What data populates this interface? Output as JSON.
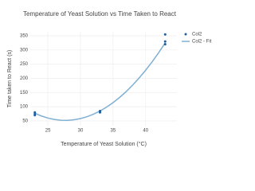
{
  "chart_data": {
    "type": "scatter",
    "title": "Temperature of Yeast Solution vs Time Taken to React",
    "x_label": "Temperature of Yeast Solution (°C)",
    "y_label": "Time taken to React (s)",
    "series": [
      {
        "name": "Col2",
        "color": "#1f5f9f",
        "mode": "markers",
        "x": [
          23,
          23,
          23,
          33,
          33,
          43,
          43,
          43
        ],
        "values": [
          80,
          75,
          70,
          85,
          80,
          355,
          330,
          320
        ]
      },
      {
        "name": "Col2 - Fit",
        "color": "#7fb0d3",
        "mode": "line",
        "x": [
          23,
          24,
          25,
          26,
          27,
          28,
          29,
          30,
          31,
          32,
          33,
          34,
          35,
          36,
          37,
          38,
          39,
          40,
          41,
          42,
          43
        ],
        "values": [
          77,
          67.4,
          60.2,
          55,
          52.4,
          52,
          54,
          58.2,
          64.8,
          73.8,
          85,
          98.6,
          114.4,
          132.6,
          153.2,
          176,
          201.2,
          228.6,
          258.4,
          290.6,
          325
        ]
      }
    ],
    "xlim": [
      22.3,
      44.8
    ],
    "xticks": [
      25,
      30,
      35,
      40
    ],
    "ylim": [
      33,
      364
    ],
    "yticks": [
      50,
      100,
      150,
      200,
      250,
      300,
      350
    ],
    "grid": true,
    "legend": "top-right"
  }
}
